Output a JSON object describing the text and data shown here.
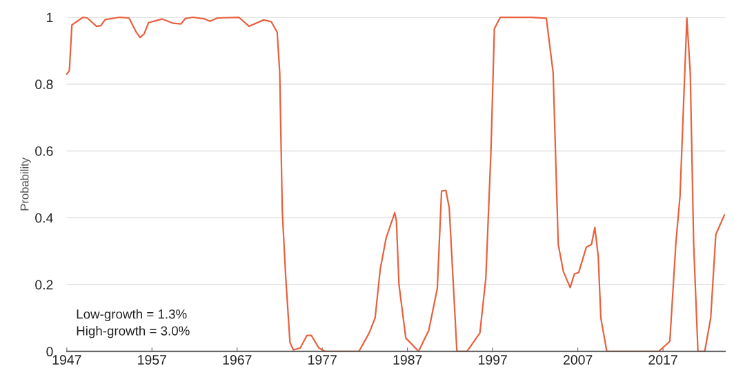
{
  "chart_data": {
    "type": "line",
    "ylabel": "Probability",
    "annotations": [
      "Low-growth = 1.3%\nHigh-growth = 3.0%"
    ],
    "x": [
      1947.0,
      1947.3,
      1947.6,
      1948.9,
      1949.4,
      1950.5,
      1951.0,
      1951.5,
      1953.2,
      1954.3,
      1955.1,
      1955.6,
      1956.1,
      1956.6,
      1957.5,
      1958.2,
      1959.5,
      1960.4,
      1960.9,
      1961.8,
      1963.2,
      1963.8,
      1964.7,
      1967.2,
      1968.4,
      1970.1,
      1971.0,
      1971.7,
      1972.0,
      1972.3,
      1972.7,
      1973.2,
      1973.6,
      1974.4,
      1975.2,
      1975.7,
      1976.6,
      1977.3,
      1981.3,
      1982.5,
      1983.2,
      1983.8,
      1984.5,
      1985.5,
      1985.7,
      1986.0,
      1986.8,
      1988.3,
      1989.5,
      1990.5,
      1991.0,
      1991.5,
      1991.9,
      1992.8,
      1994.0,
      1995.5,
      1996.2,
      1996.8,
      1997.2,
      1997.9,
      2001.5,
      2003.3,
      2004.1,
      2004.7,
      2005.3,
      2006.1,
      2006.6,
      2007.1,
      2008.0,
      2008.6,
      2009.0,
      2009.4,
      2009.7,
      2010.4,
      2016.5,
      2017.8,
      2018.5,
      2019.0,
      2019.8,
      2020.2,
      2020.6,
      2021.1,
      2021.9,
      2022.6,
      2023.2,
      2024.2
    ],
    "series": [
      {
        "color": "#e8603c",
        "values": [
          0.83,
          0.84,
          0.977,
          1.0,
          0.998,
          0.973,
          0.975,
          0.993,
          1.0,
          0.998,
          0.958,
          0.94,
          0.951,
          0.984,
          0.99,
          0.995,
          0.982,
          0.98,
          0.996,
          1.0,
          0.995,
          0.988,
          0.998,
          1.0,
          0.973,
          0.992,
          0.987,
          0.955,
          0.834,
          0.42,
          0.224,
          0.027,
          0.004,
          0.01,
          0.048,
          0.048,
          0.01,
          0.0,
          0.0,
          0.055,
          0.1,
          0.246,
          0.34,
          0.415,
          0.39,
          0.2,
          0.04,
          0.0,
          0.063,
          0.188,
          0.48,
          0.482,
          0.43,
          0.0,
          0.0,
          0.055,
          0.22,
          0.6,
          0.966,
          1.0,
          1.0,
          0.997,
          0.834,
          0.32,
          0.239,
          0.191,
          0.232,
          0.236,
          0.312,
          0.32,
          0.371,
          0.283,
          0.1,
          0.0,
          0.0,
          0.03,
          0.32,
          0.466,
          0.998,
          0.834,
          0.32,
          0.0,
          0.0,
          0.1,
          0.35,
          0.408
        ]
      }
    ],
    "xlim": [
      1947,
      2024.3
    ],
    "xticks": [
      1947,
      1957,
      1967,
      1977,
      1987,
      1997,
      2007,
      2017
    ],
    "ylim": [
      0,
      1
    ],
    "yticks": [
      0,
      0.2,
      0.4,
      0.6,
      0.8,
      1
    ],
    "grid": "y",
    "legend": false,
    "marker": "none",
    "line_style": "solid"
  }
}
